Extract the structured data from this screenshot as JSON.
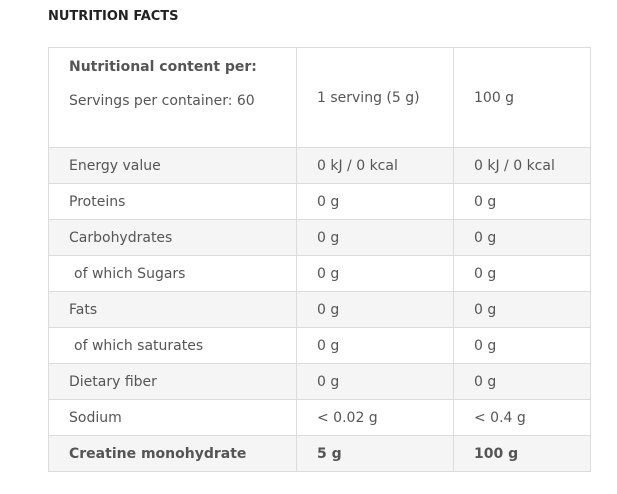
{
  "title": "NUTRITION FACTS",
  "header": {
    "label": "Nutritional content per:",
    "servings": "Servings per container: 60",
    "col_serving": "1 serving (5 g)",
    "col_100g": "100 g"
  },
  "rows": [
    {
      "name": "Energy value",
      "serving": "0 kJ / 0 kcal",
      "per100": "0 kJ / 0 kcal"
    },
    {
      "name": "Proteins",
      "serving": "0 g",
      "per100": "0 g"
    },
    {
      "name": "Carbohydrates",
      "serving": "0 g",
      "per100": "0 g"
    },
    {
      "name": "of which Sugars",
      "serving": "0 g",
      "per100": "0 g"
    },
    {
      "name": "Fats",
      "serving": "0 g",
      "per100": "0 g"
    },
    {
      "name": "of which saturates",
      "serving": "0 g",
      "per100": "0 g"
    },
    {
      "name": "Dietary fiber",
      "serving": "0 g",
      "per100": "0 g"
    },
    {
      "name": "Sodium",
      "serving": "< 0.02 g",
      "per100": "< 0.4 g"
    },
    {
      "name": "Creatine monohydrate",
      "serving": "5 g",
      "per100": "100 g"
    }
  ]
}
